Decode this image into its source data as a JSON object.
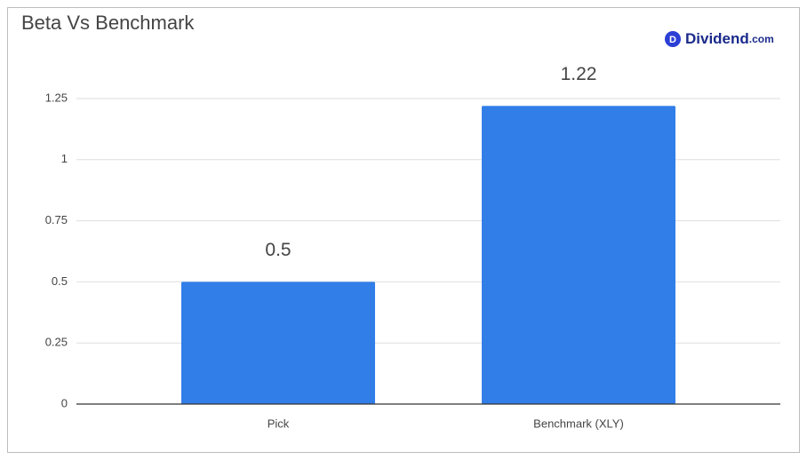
{
  "chart_data": {
    "type": "bar",
    "title": "Beta Vs Benchmark",
    "categories": [
      "Pick",
      "Benchmark (XLY)"
    ],
    "values": [
      0.5,
      1.22
    ],
    "color": "#327ee9",
    "ylim": [
      0,
      1.25
    ],
    "yticks": [
      0,
      0.25,
      0.5,
      0.75,
      1,
      1.25
    ],
    "grid": true
  },
  "logo": {
    "icon": "D",
    "name": "Dividend",
    "suffix": ".com"
  }
}
